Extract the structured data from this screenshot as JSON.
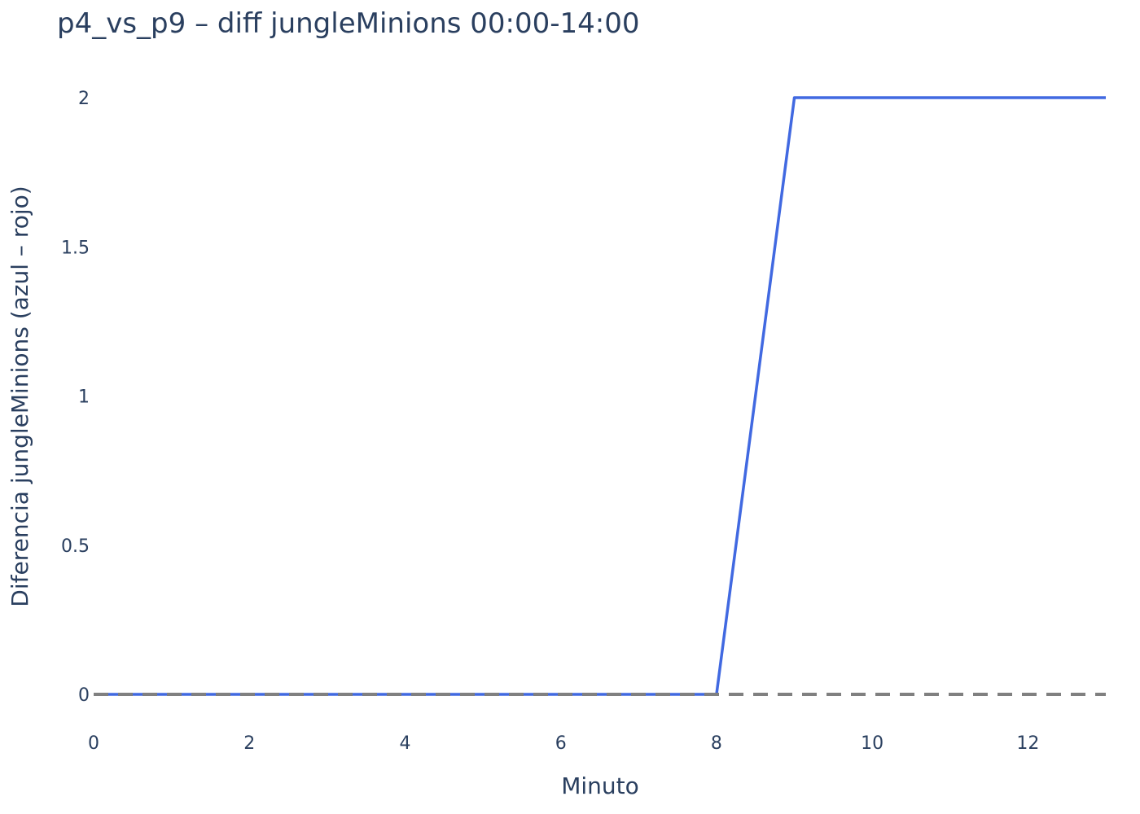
{
  "chart_data": {
    "type": "line",
    "title": "p4_vs_p9 – diff jungleMinions 00:00-14:00",
    "xlabel": "Minuto",
    "ylabel": "Diferencia jungleMinions (azul – rojo)",
    "xlim": [
      0,
      13
    ],
    "ylim": [
      0,
      2
    ],
    "x_ticks": [
      0,
      2,
      4,
      6,
      8,
      10,
      12
    ],
    "x_tick_labels": [
      "0",
      "2",
      "4",
      "6",
      "8",
      "10",
      "12"
    ],
    "y_ticks": [
      0,
      0.5,
      1,
      1.5,
      2
    ],
    "y_tick_labels": [
      "0",
      "0.5",
      "1",
      "1.5",
      "2"
    ],
    "grid": false,
    "series": [
      {
        "x": [
          0,
          1,
          2,
          3,
          4,
          5,
          6,
          7,
          8,
          9,
          10,
          11,
          12,
          13
        ],
        "y": [
          0,
          0,
          0,
          0,
          0,
          0,
          0,
          0,
          0,
          2,
          2,
          2,
          2,
          2
        ],
        "color": "#4169e1"
      }
    ],
    "reference_line": {
      "y": 0,
      "style": "dashed",
      "color": "#808080"
    }
  }
}
